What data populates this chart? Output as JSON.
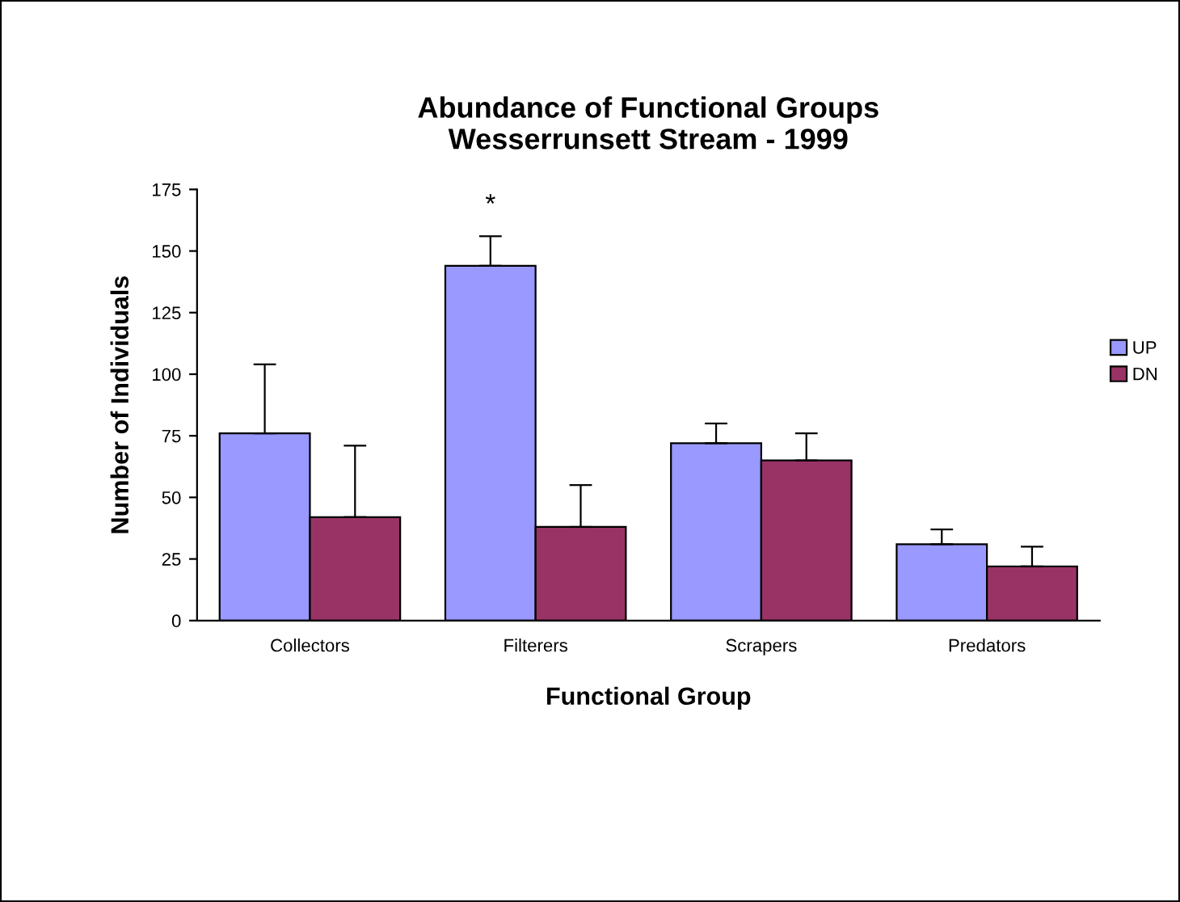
{
  "chart_data": {
    "type": "bar",
    "title": "Abundance of Functional Groups\nWesserrunsett Stream - 1999",
    "xlabel": "Functional Group",
    "ylabel": "Number of Individuals",
    "categories": [
      "Collectors",
      "Filterers",
      "Scrapers",
      "Predators"
    ],
    "series": [
      {
        "name": "UP",
        "color": "#9999ff",
        "values": [
          76,
          144,
          72,
          31
        ],
        "errors": [
          [
            76,
            104
          ],
          [
            144,
            156
          ],
          [
            72,
            80
          ],
          [
            31,
            37
          ]
        ]
      },
      {
        "name": "DN",
        "color": "#993366",
        "values": [
          42,
          38,
          65,
          22
        ],
        "errors": [
          [
            42,
            71
          ],
          [
            38,
            55
          ],
          [
            65,
            76
          ],
          [
            22,
            30
          ]
        ]
      }
    ],
    "ylim": [
      0,
      175
    ],
    "yticks": [
      0,
      25,
      50,
      75,
      100,
      125,
      150,
      175
    ],
    "grid": false,
    "legend": "right",
    "annotations": [
      "*"
    ]
  }
}
